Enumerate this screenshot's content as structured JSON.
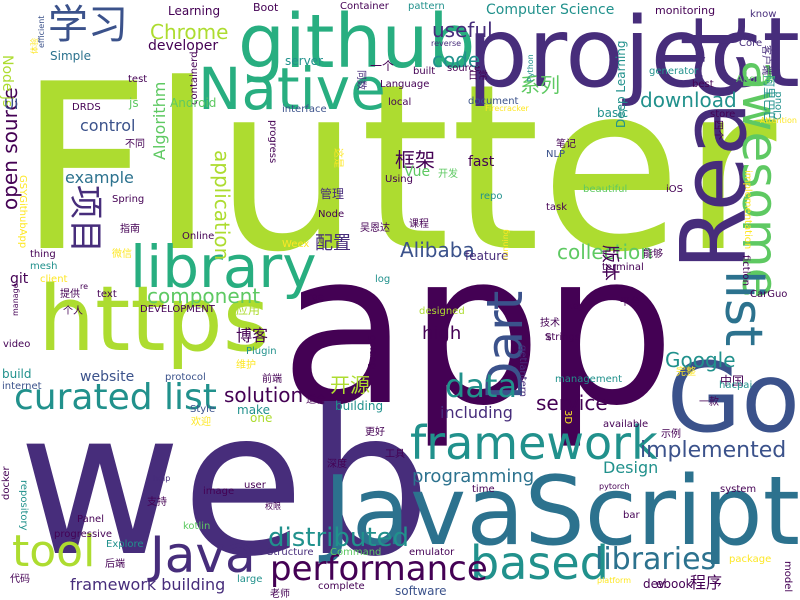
{
  "colors": {
    "dark_purple": "#440154",
    "indigo": "#472d7b",
    "blue": "#3b528b",
    "steel": "#2c728e",
    "teal": "#21918c",
    "green": "#28ae80",
    "light_green": "#5ec962",
    "lime": "#addc30",
    "yellow": "#fde725"
  },
  "words": [
    {
      "text": "Flutter",
      "color": "lime"
    },
    {
      "text": "app",
      "color": "dark_purple"
    },
    {
      "text": "web",
      "color": "indigo"
    },
    {
      "text": "project",
      "color": "indigo"
    },
    {
      "text": "JavaScript",
      "color": "steel"
    },
    {
      "text": "github",
      "color": "green"
    },
    {
      "text": "React",
      "color": "indigo"
    },
    {
      "text": "Go",
      "color": "blue"
    },
    {
      "text": "https",
      "color": "lime"
    },
    {
      "text": "Native",
      "color": "green"
    },
    {
      "text": "library",
      "color": "green"
    },
    {
      "text": "awesome",
      "color": "light_green"
    },
    {
      "text": "list",
      "color": "steel"
    },
    {
      "text": "framework",
      "color": "teal"
    },
    {
      "text": "Java",
      "color": "indigo"
    },
    {
      "text": "based",
      "color": "teal"
    },
    {
      "text": "Dart",
      "color": "blue"
    },
    {
      "text": "curated list",
      "color": "teal"
    },
    {
      "text": "tool",
      "color": "lime"
    },
    {
      "text": "performance",
      "color": "dark_purple"
    },
    {
      "text": "学习",
      "color": "blue"
    },
    {
      "text": "项目",
      "color": "indigo"
    },
    {
      "text": "data",
      "color": "teal"
    },
    {
      "text": "libraries",
      "color": "steel"
    },
    {
      "text": "programming",
      "color": "steel"
    },
    {
      "text": "distributed",
      "color": "teal"
    },
    {
      "text": "implemented",
      "color": "blue"
    },
    {
      "text": "component",
      "color": "light_green"
    },
    {
      "text": "code",
      "color": "teal"
    },
    {
      "text": "useful",
      "color": "indigo"
    },
    {
      "text": "download",
      "color": "teal"
    },
    {
      "text": "Chrome",
      "color": "lime"
    },
    {
      "text": "open source",
      "color": "dark_purple"
    },
    {
      "text": "collection",
      "color": "light_green"
    },
    {
      "text": "solution",
      "color": "dark_purple"
    },
    {
      "text": "service",
      "color": "dark_purple"
    },
    {
      "text": "Google",
      "color": "teal"
    },
    {
      "text": "Alibaba",
      "color": "blue"
    },
    {
      "text": "including",
      "color": "indigo"
    },
    {
      "text": "Design",
      "color": "teal"
    },
    {
      "text": "application",
      "color": "lime"
    },
    {
      "text": "Algorithm",
      "color": "light_green"
    },
    {
      "text": "control",
      "color": "blue"
    },
    {
      "text": "example",
      "color": "steel"
    },
    {
      "text": "website",
      "color": "blue"
    },
    {
      "text": "high",
      "color": "dark_purple"
    },
    {
      "text": "framework building",
      "color": "indigo"
    },
    {
      "text": "software",
      "color": "blue"
    },
    {
      "text": "Node js",
      "color": "lime"
    },
    {
      "text": "系列",
      "color": "light_green"
    },
    {
      "text": "开源",
      "color": "lime"
    },
    {
      "text": "框架",
      "color": "dark_purple"
    },
    {
      "text": "配置",
      "color": "indigo"
    },
    {
      "text": "博客",
      "color": "dark_purple"
    },
    {
      "text": "版本",
      "color": "dark_purple"
    },
    {
      "text": "程序",
      "color": "dark_purple"
    },
    {
      "text": "UI",
      "color": "blue"
    },
    {
      "text": "git",
      "color": "dark_purple"
    },
    {
      "text": "fast",
      "color": "dark_purple"
    },
    {
      "text": "developer",
      "color": "dark_purple"
    },
    {
      "text": "Learning",
      "color": "dark_purple"
    },
    {
      "text": "Simple",
      "color": "steel"
    },
    {
      "text": "server",
      "color": "teal"
    },
    {
      "text": "Computer Science",
      "color": "teal"
    },
    {
      "text": "monitoring",
      "color": "dark_purple"
    },
    {
      "text": "Boot",
      "color": "dark_purple"
    },
    {
      "text": "Container",
      "color": "dark_purple"
    },
    {
      "text": "pattern",
      "color": "teal"
    },
    {
      "text": "know",
      "color": "indigo"
    },
    {
      "text": "Core",
      "color": "indigo"
    },
    {
      "text": "客户端",
      "color": "indigo"
    },
    {
      "text": "阿里巴巴",
      "color": "teal"
    },
    {
      "text": "Cloud",
      "color": "teal"
    },
    {
      "text": "store",
      "color": "dark_purple"
    },
    {
      "text": "四个",
      "color": "dark_purple"
    },
    {
      "text": "Angular",
      "color": "light_green"
    },
    {
      "text": "best",
      "color": "dark_purple"
    },
    {
      "text": "generator",
      "color": "teal"
    },
    {
      "text": "basic",
      "color": "teal"
    },
    {
      "text": "document",
      "color": "blue"
    },
    {
      "text": "Python",
      "color": "teal"
    },
    {
      "text": "日常",
      "color": "dark_purple"
    },
    {
      "text": "source",
      "color": "dark_purple"
    },
    {
      "text": "reverse",
      "color": "indigo"
    },
    {
      "text": "built",
      "color": "dark_purple"
    },
    {
      "text": "一个",
      "color": "dark_purple"
    },
    {
      "text": "同数",
      "color": "indigo"
    },
    {
      "text": "Language",
      "color": "dark_purple"
    },
    {
      "text": "local",
      "color": "dark_purple"
    },
    {
      "text": "interface",
      "color": "blue"
    },
    {
      "text": "containerd",
      "color": "dark_purple"
    },
    {
      "text": "Android",
      "color": "light_green"
    },
    {
      "text": "js",
      "color": "light_green"
    },
    {
      "text": "DRDS",
      "color": "dark_purple"
    },
    {
      "text": "test",
      "color": "dark_purple"
    },
    {
      "text": "efficient",
      "color": "blue"
    },
    {
      "text": "Firecracker",
      "color": "yellow"
    },
    {
      "text": "笔记",
      "color": "dark_purple"
    },
    {
      "text": "NLP",
      "color": "blue"
    },
    {
      "text": "Deep Learning",
      "color": "teal"
    },
    {
      "text": "progress",
      "color": "dark_purple"
    },
    {
      "text": "不同",
      "color": "dark_purple"
    },
    {
      "text": "这是",
      "color": "yellow"
    },
    {
      "text": "管理",
      "color": "indigo"
    },
    {
      "text": "Using",
      "color": "dark_purple"
    },
    {
      "text": "开发",
      "color": "light_green"
    },
    {
      "text": "repo",
      "color": "teal"
    },
    {
      "text": "beautiful",
      "color": "light_green"
    },
    {
      "text": "iOS",
      "color": "dark_purple"
    },
    {
      "text": "task",
      "color": "dark_purple"
    },
    {
      "text": "Vue",
      "color": "light_green"
    },
    {
      "text": "Node",
      "color": "dark_purple"
    },
    {
      "text": "课程",
      "color": "dark_purple"
    },
    {
      "text": "吴恩达",
      "color": "dark_purple"
    },
    {
      "text": "implementation",
      "color": "yellow"
    },
    {
      "text": "GSYGithubApp",
      "color": "yellow"
    },
    {
      "text": "Spring",
      "color": "dark_purple"
    },
    {
      "text": "指南",
      "color": "dark_purple"
    },
    {
      "text": "Online",
      "color": "dark_purple"
    },
    {
      "text": "Weex",
      "color": "yellow"
    },
    {
      "text": "微信",
      "color": "yellow"
    },
    {
      "text": "thing",
      "color": "dark_purple"
    },
    {
      "text": "mesh",
      "color": "teal"
    },
    {
      "text": "client",
      "color": "yellow"
    },
    {
      "text": "feature",
      "color": "indigo"
    },
    {
      "text": "running",
      "color": "yellow"
    },
    {
      "text": "能够",
      "color": "dark_purple"
    },
    {
      "text": "terminal",
      "color": "dark_purple"
    },
    {
      "text": "fiction",
      "color": "dark_purple"
    },
    {
      "text": "log",
      "color": "teal"
    },
    {
      "text": "CarGuo",
      "color": "dark_purple"
    },
    {
      "text": "平台",
      "color": "dark_purple"
    },
    {
      "text": "key",
      "color": "dark_purple"
    },
    {
      "text": "text",
      "color": "dark_purple"
    },
    {
      "text": "free",
      "color": "dark_purple"
    },
    {
      "text": "提供",
      "color": "dark_purple"
    },
    {
      "text": "个人",
      "color": "dark_purple"
    },
    {
      "text": "DEVELOPMENT",
      "color": "dark_purple"
    },
    {
      "text": "应用",
      "color": "lime"
    },
    {
      "text": "designed",
      "color": "lime"
    },
    {
      "text": "技术",
      "color": "dark_purple"
    },
    {
      "text": "Strings",
      "color": "dark_purple"
    },
    {
      "text": "getlantern",
      "color": "indigo"
    },
    {
      "text": "golang",
      "color": "dark_purple"
    },
    {
      "text": "Plugin",
      "color": "teal"
    },
    {
      "text": "video",
      "color": "dark_purple"
    },
    {
      "text": "build",
      "color": "teal"
    },
    {
      "text": "internet",
      "color": "blue"
    },
    {
      "text": "protocol",
      "color": "blue"
    },
    {
      "text": "维护",
      "color": "yellow"
    },
    {
      "text": "前端",
      "color": "dark_purple"
    },
    {
      "text": "management",
      "color": "teal"
    },
    {
      "text": "完整",
      "color": "yellow"
    },
    {
      "text": "中国",
      "color": "dark_purple"
    },
    {
      "text": "hacpai",
      "color": "teal"
    },
    {
      "text": "Style",
      "color": "blue"
    },
    {
      "text": "make",
      "color": "teal"
    },
    {
      "text": "one",
      "color": "lime"
    },
    {
      "text": "building",
      "color": "teal"
    },
    {
      "text": "适合",
      "color": "dark_purple"
    },
    {
      "text": "欢迎",
      "color": "yellow"
    },
    {
      "text": "3D",
      "color": "yellow"
    },
    {
      "text": "一款",
      "color": "dark_purple"
    },
    {
      "text": "available",
      "color": "dark_purple"
    },
    {
      "text": "示例",
      "color": "dark_purple"
    },
    {
      "text": "更好",
      "color": "dark_purple"
    },
    {
      "text": "工具",
      "color": "dark_purple"
    },
    {
      "text": "深度",
      "color": "dark_purple"
    },
    {
      "text": "help",
      "color": "indigo"
    },
    {
      "text": "image",
      "color": "dark_purple"
    },
    {
      "text": "user",
      "color": "dark_purple"
    },
    {
      "text": "time",
      "color": "dark_purple"
    },
    {
      "text": "pytorch",
      "color": "dark_purple"
    },
    {
      "text": "system",
      "color": "dark_purple"
    },
    {
      "text": "docker",
      "color": "dark_purple"
    },
    {
      "text": "repository",
      "color": "teal"
    },
    {
      "text": "支持",
      "color": "dark_purple"
    },
    {
      "text": "权限",
      "color": "dark_purple"
    },
    {
      "text": "Panel",
      "color": "dark_purple"
    },
    {
      "text": "bar",
      "color": "dark_purple"
    },
    {
      "text": "kotlin",
      "color": "light_green"
    },
    {
      "text": "progressive",
      "color": "dark_purple"
    },
    {
      "text": "Structure",
      "color": "indigo"
    },
    {
      "text": "Command",
      "color": "light_green"
    },
    {
      "text": "emulator",
      "color": "dark_purple"
    },
    {
      "text": "Explore",
      "color": "teal"
    },
    {
      "text": "后端",
      "color": "dark_purple"
    },
    {
      "text": "代码",
      "color": "dark_purple"
    },
    {
      "text": "large",
      "color": "teal"
    },
    {
      "text": "complete",
      "color": "dark_purple"
    },
    {
      "text": "老师",
      "color": "dark_purple"
    },
    {
      "text": "platform",
      "color": "yellow"
    },
    {
      "text": "package",
      "color": "yellow"
    },
    {
      "text": "model",
      "color": "dark_purple"
    },
    {
      "text": "dev",
      "color": "dark_purple"
    },
    {
      "text": "ebook",
      "color": "dark_purple"
    },
    {
      "text": "manage",
      "color": "dark_purple"
    },
    {
      "text": "体验",
      "color": "yellow"
    },
    {
      "text": "Attention",
      "color": "yellow"
    },
    {
      "text": "ai",
      "color": "dark_purple"
    },
    {
      "text": "re",
      "color": "dark_purple"
    }
  ]
}
